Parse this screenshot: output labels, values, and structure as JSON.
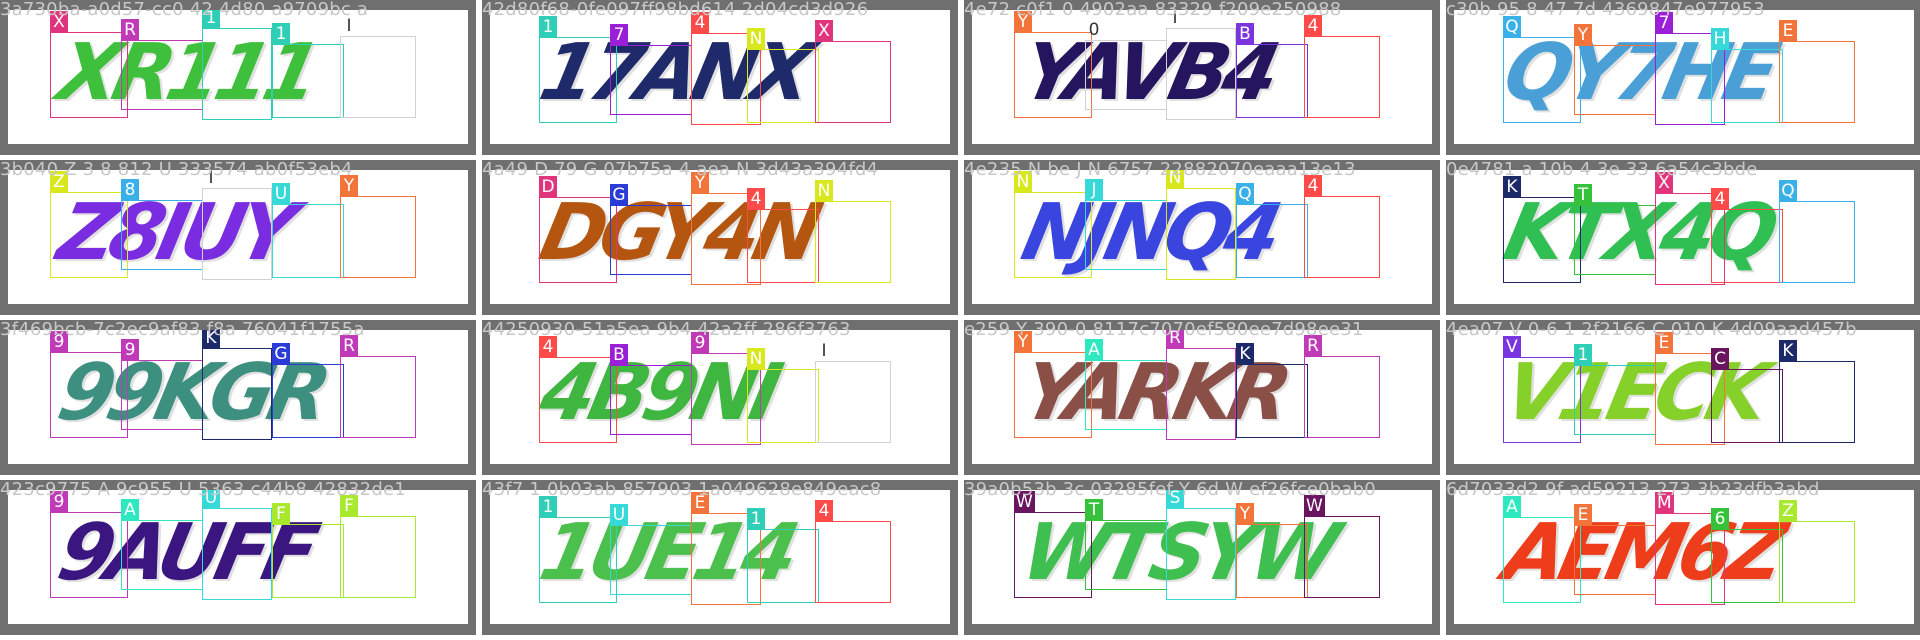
{
  "panels": [
    {
      "title": "3a730ba-a0d57-cc0 42 4d80 a9709bc a",
      "captcha": "XR111",
      "color": "#3fc03c",
      "boxes": [
        {
          "label": "X",
          "color": "#e0357c"
        },
        {
          "label": "R",
          "color": "#c03ab8"
        },
        {
          "label": "1",
          "color": "#2ecfb6"
        },
        {
          "label": "1",
          "color": "#2ecfb6"
        },
        {
          "label": "I",
          "color": "#d2d2d2"
        }
      ]
    },
    {
      "title": "42d80f68-0fe097ff98bd614 2d04cd3d926",
      "captcha": "17ANX",
      "color": "#1f2a6b",
      "boxes": [
        {
          "label": "1",
          "color": "#2ecfb6"
        },
        {
          "label": "7",
          "color": "#9b1fd6"
        },
        {
          "label": "4",
          "color": "#ff4a4a"
        },
        {
          "label": "N",
          "color": "#d8e81d"
        },
        {
          "label": "X",
          "color": "#e0357c"
        }
      ]
    },
    {
      "title": "4e72 c0f1 0 4902aa 83329 f209e250988",
      "captcha": "YAVB4",
      "color": "#24155e",
      "boxes": [
        {
          "label": "Y",
          "color": "#f2743a"
        },
        {
          "label": "0",
          "color": "#d2d2d2"
        },
        {
          "label": "I",
          "color": "#d2d2d2"
        },
        {
          "label": "B",
          "color": "#7a34e0"
        },
        {
          "label": "4",
          "color": "#ff4a4a"
        }
      ]
    },
    {
      "title": "c30b 95 8 47 7d 4369847e977953",
      "captcha": "QY7HE",
      "color": "#4aa0d6",
      "boxes": [
        {
          "label": "Q",
          "color": "#3ab0e8"
        },
        {
          "label": "Y",
          "color": "#f2743a"
        },
        {
          "label": "7",
          "color": "#9b1fd6"
        },
        {
          "label": "H",
          "color": "#36d8d8"
        },
        {
          "label": "E",
          "color": "#f2743a"
        }
      ]
    },
    {
      "title": "3b040 Z 3 8 812 U 333574 ab0f53eb4",
      "captcha": "Z8IUY",
      "color": "#7a2de0",
      "boxes": [
        {
          "label": "Z",
          "color": "#d8e81d"
        },
        {
          "label": "8",
          "color": "#3ab0e8"
        },
        {
          "label": "I",
          "color": "#d2d2d2"
        },
        {
          "label": "U",
          "color": "#36d8d8"
        },
        {
          "label": "Y",
          "color": "#f2743a"
        }
      ]
    },
    {
      "title": "4a49 D 79 G 07b75a 4 aea N 3d43a394fd4",
      "captcha": "DGY4N",
      "color": "#b45510",
      "boxes": [
        {
          "label": "D",
          "color": "#e0357c"
        },
        {
          "label": "G",
          "color": "#2b3bd6"
        },
        {
          "label": "Y",
          "color": "#f2743a"
        },
        {
          "label": "4",
          "color": "#ff4a4a"
        },
        {
          "label": "N",
          "color": "#d8e81d"
        }
      ]
    },
    {
      "title": "4e235 N be J N 6757 22882070eaaa13e13",
      "captcha": "NJNQ4",
      "color": "#3a45e0",
      "boxes": [
        {
          "label": "N",
          "color": "#d8e81d"
        },
        {
          "label": "J",
          "color": "#36d8d8"
        },
        {
          "label": "N",
          "color": "#d8e81d"
        },
        {
          "label": "Q",
          "color": "#3ab0e8"
        },
        {
          "label": "4",
          "color": "#ff4a4a"
        }
      ]
    },
    {
      "title": "0e4781 a 10b 4 3e 33 6a54c3bde",
      "captcha": "KTX4Q",
      "color": "#2fbf52",
      "boxes": [
        {
          "label": "K",
          "color": "#1c2a6a"
        },
        {
          "label": "T",
          "color": "#35c23a"
        },
        {
          "label": "X",
          "color": "#e0357c"
        },
        {
          "label": "4",
          "color": "#ff4a4a"
        },
        {
          "label": "Q",
          "color": "#3ab0e8"
        }
      ]
    },
    {
      "title": "3f469bcb-7c2ec9af83 f8a 76041f1755a",
      "captcha": "99KGR",
      "color": "#3d8f80",
      "boxes": [
        {
          "label": "9",
          "color": "#c03ab8"
        },
        {
          "label": "9",
          "color": "#c03ab8"
        },
        {
          "label": "K",
          "color": "#1c2a6a"
        },
        {
          "label": "G",
          "color": "#2b3bd6"
        },
        {
          "label": "R",
          "color": "#c03ab8"
        }
      ]
    },
    {
      "title": "44250930-51a5ea 9b4 42a2ff 286f3763",
      "captcha": "4B9NI",
      "color": "#3fb63f",
      "boxes": [
        {
          "label": "4",
          "color": "#ff4a4a"
        },
        {
          "label": "B",
          "color": "#9b1fd6"
        },
        {
          "label": "9",
          "color": "#c03ab8"
        },
        {
          "label": "N",
          "color": "#d8e81d"
        },
        {
          "label": "I",
          "color": "#d2d2d2"
        }
      ]
    },
    {
      "title": "e259 Y 390-0 8117c7070ef580ee7d98ee31",
      "captcha": "YARKR",
      "color": "#8a5048",
      "boxes": [
        {
          "label": "Y",
          "color": "#f2743a"
        },
        {
          "label": "A",
          "color": "#2ee8c0"
        },
        {
          "label": "R",
          "color": "#c03ab8"
        },
        {
          "label": "K",
          "color": "#1c2a6a"
        },
        {
          "label": "R",
          "color": "#c03ab8"
        }
      ]
    },
    {
      "title": "4ea07 V 0-6 1 2f2166 C 010 K 4d09aad457b",
      "captcha": "V1ECK",
      "color": "#86d02a",
      "boxes": [
        {
          "label": "V",
          "color": "#7a34e0"
        },
        {
          "label": "1",
          "color": "#2ecfb6"
        },
        {
          "label": "E",
          "color": "#f2743a"
        },
        {
          "label": "C",
          "color": "#6a1560"
        },
        {
          "label": "K",
          "color": "#1c2a6a"
        }
      ]
    },
    {
      "title": "423c9775 A 9c955 U 5363 c44b8 42832de1",
      "captcha": "9AUFF",
      "color": "#3b1680",
      "boxes": [
        {
          "label": "9",
          "color": "#c03ab8"
        },
        {
          "label": "A",
          "color": "#2ee8c0"
        },
        {
          "label": "U",
          "color": "#36d8d8"
        },
        {
          "label": "F",
          "color": "#a8e82d"
        },
        {
          "label": "F",
          "color": "#a8e82d"
        }
      ]
    },
    {
      "title": "43f7 1 0b03ab 857903 1a049628e849eac8",
      "captcha": "1UE14",
      "color": "#4cc04c",
      "boxes": [
        {
          "label": "1",
          "color": "#2ecfb6"
        },
        {
          "label": "U",
          "color": "#36d8d8"
        },
        {
          "label": "E",
          "color": "#f2743a"
        },
        {
          "label": "1",
          "color": "#2ecfb6"
        },
        {
          "label": "4",
          "color": "#ff4a4a"
        }
      ]
    },
    {
      "title": "39a0b53b 3c 03285fef Y 6d W ef26fce0bab0",
      "captcha": "WTSYW",
      "color": "#3fbf4f",
      "boxes": [
        {
          "label": "W",
          "color": "#6a1560"
        },
        {
          "label": "T",
          "color": "#35c23a"
        },
        {
          "label": "S",
          "color": "#36d8d8"
        },
        {
          "label": "Y",
          "color": "#f2743a"
        },
        {
          "label": "W",
          "color": "#6a1560"
        }
      ]
    },
    {
      "title": "6d7033d2 9f ad59213 273 3b23dfb3abd",
      "captcha": "AEM6Z",
      "color": "#ee3d1a",
      "boxes": [
        {
          "label": "A",
          "color": "#2ee8c0"
        },
        {
          "label": "E",
          "color": "#f2743a"
        },
        {
          "label": "M",
          "color": "#e0357c"
        },
        {
          "label": "6",
          "color": "#35c23a"
        },
        {
          "label": "Z",
          "color": "#a8e82d"
        }
      ]
    }
  ]
}
